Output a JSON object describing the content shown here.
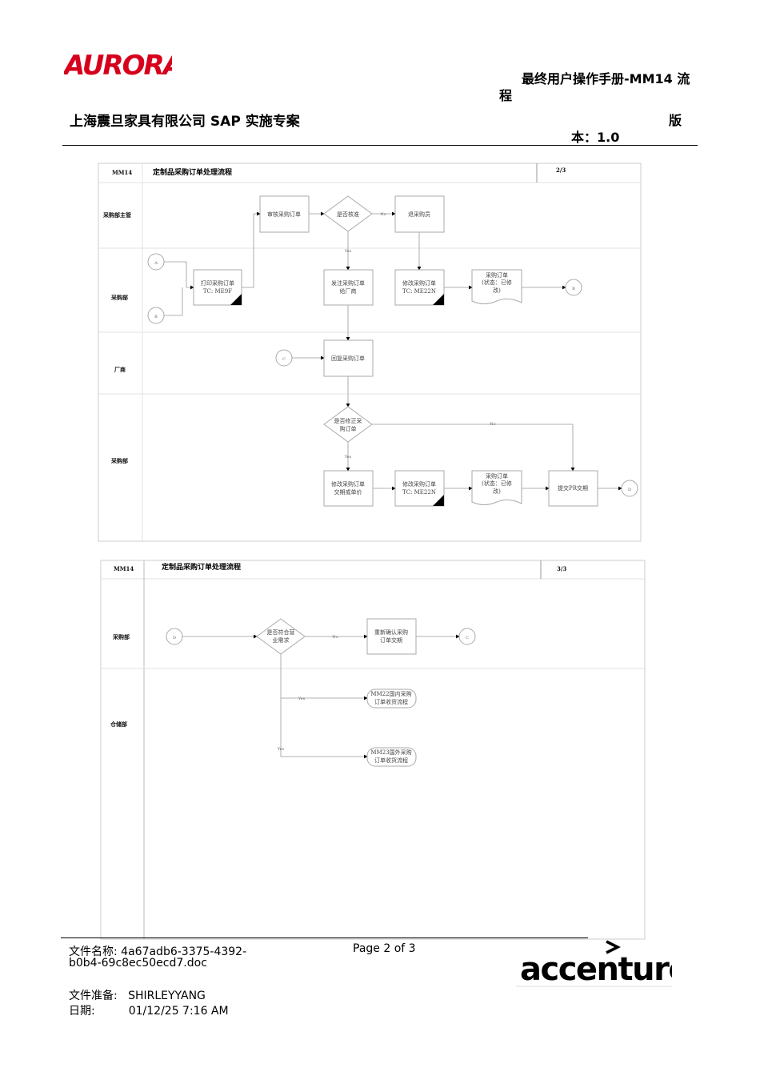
{
  "header": {
    "logo": "AURORA",
    "title_line1": "最终用户操作手册-MM14 流",
    "title_line2": "程",
    "company": "上海震旦家具有限公司 SAP 实施专案",
    "version_line1": "版",
    "version_line2": "本：1.0",
    "brand_color": "#d6001c"
  },
  "diagram1": {
    "code": "MM14",
    "title": "定制品采购订单处理流程",
    "page": "2/3",
    "lanes": [
      "采购部主管",
      "采购部",
      "厂商",
      "采购部"
    ],
    "nodes": {
      "review": "审核采购订单",
      "approved": "是否核准",
      "return": "退采购员",
      "print1": "打印采购订单",
      "print2": "TC: ME9F",
      "send1": "发注采购订单",
      "send2": "给厂商",
      "mod1": "修改采购订单",
      "mod2": "TC: ME22N",
      "doc1": "采购订单",
      "doc2": "(状态：已修",
      "doc3": "改)",
      "reply": "回复采购订单",
      "fix1": "是否修正采",
      "fix2": "购订单",
      "chg1": "修改采购订单",
      "chg2": "交期或单价",
      "mod2b1": "修改采购订单",
      "mod2b2": "TC: ME22N",
      "docb1": "采购订单",
      "docb2": "(状态：已修",
      "docb3": "改)",
      "submit": "提交PR交期"
    },
    "connectors": {
      "a": "A",
      "b": "B",
      "b2": "B",
      "c": "C",
      "d": "D"
    },
    "labels": {
      "no1": "No",
      "yes1": "Yes",
      "no2": "No",
      "yes2": "Yes"
    }
  },
  "diagram2": {
    "code": "MM14",
    "title": "定制品采购订单处理流程",
    "page": "3/3",
    "lanes": [
      "采购部",
      "仓储部"
    ],
    "nodes": {
      "meet1": "是否符合营",
      "meet2": "业需求",
      "reconfirm1": "重新确认采购",
      "reconfirm2": "订单交期",
      "mm22a": "MM22国内采购",
      "mm22b": "订单收货流程",
      "mm23a": "MM23国外采购",
      "mm23b": "订单收货流程"
    },
    "connectors": {
      "d": "D",
      "c": "C"
    },
    "labels": {
      "no": "No",
      "yes1": "Yes",
      "yes2": "Yes"
    }
  },
  "footer": {
    "filename_label": "文件名称:",
    "filename_value1": "4a67adb6-3375-4392-",
    "filename_value2": "b0b4-69c8ec50ecd7.doc",
    "page": "Page 2 of 3",
    "prepared_label": "文件准备:",
    "prepared_value": "SHIRLEYYANG",
    "date_label": "日期:",
    "date_value": "01/12/25 7:16 AM",
    "logo": "accenture"
  }
}
